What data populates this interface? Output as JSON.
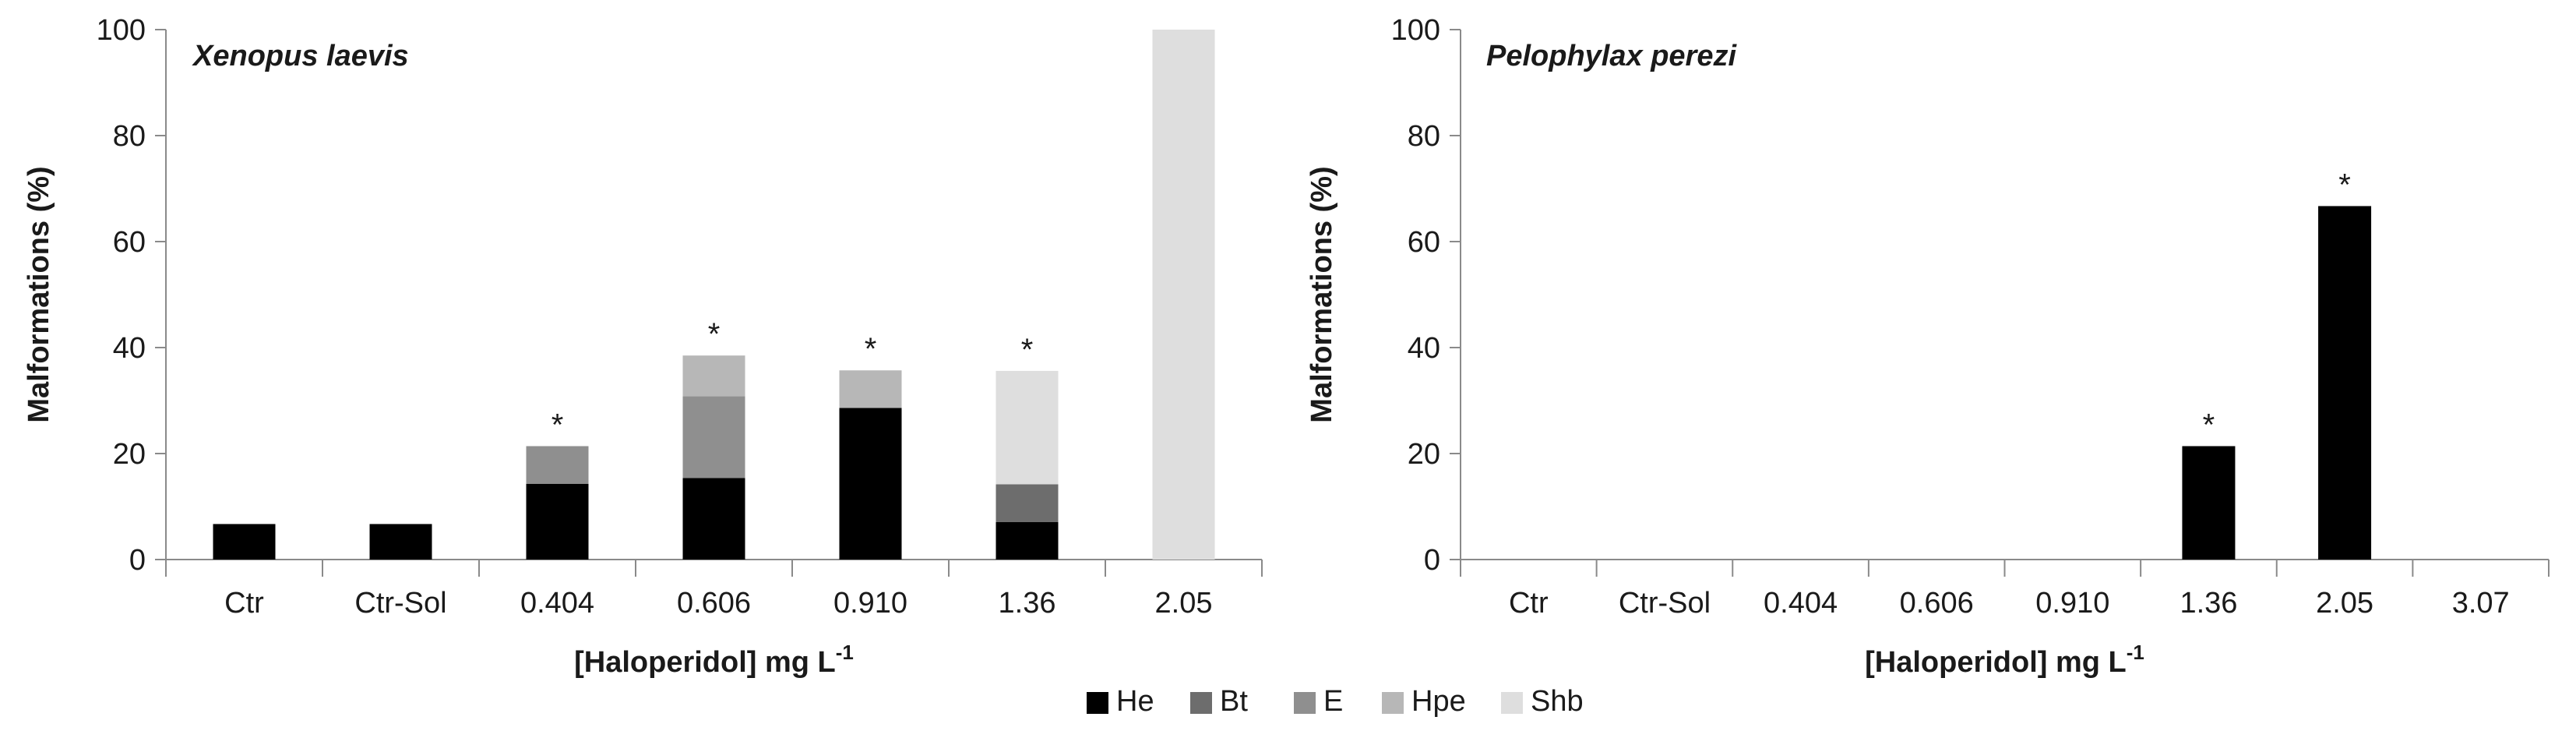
{
  "colors": {
    "He": "#000000",
    "Bt": "#6d6d6d",
    "E": "#8f8f8f",
    "Hpe": "#b7b7b7",
    "Shb": "#dedede",
    "axis": "#8a8a8a"
  },
  "legend": {
    "items": [
      "He",
      "Bt",
      "E",
      "Hpe",
      "Shb"
    ],
    "placement": "bottom-center"
  },
  "chart_data": [
    {
      "type": "bar",
      "stacked": true,
      "title": "Xenopus laevis",
      "xlabel_main": "[Haloperidol]  mg L",
      "xlabel_sup": "-1",
      "ylabel": "Malformations (%)",
      "ylim": [
        0,
        100
      ],
      "yticks": [
        0,
        20,
        40,
        60,
        80,
        100
      ],
      "categories": [
        "Ctr",
        "Ctr-Sol",
        "0.404",
        "0.606",
        "0.910",
        "1.36",
        "2.05"
      ],
      "series": [
        {
          "name": "He",
          "values": [
            6.7,
            6.7,
            14.3,
            15.4,
            28.6,
            7.1,
            0
          ]
        },
        {
          "name": "Bt",
          "values": [
            0,
            0,
            0,
            0,
            0,
            7.1,
            0
          ]
        },
        {
          "name": "E",
          "values": [
            0,
            0,
            7.1,
            15.4,
            0,
            0,
            0
          ]
        },
        {
          "name": "Hpe",
          "values": [
            0,
            0,
            0,
            7.7,
            7.1,
            0,
            0
          ]
        },
        {
          "name": "Shb",
          "values": [
            0,
            0,
            0,
            0,
            0,
            21.4,
            100
          ]
        }
      ],
      "significance": [
        "",
        "",
        "*",
        "*",
        "*",
        "*",
        ""
      ]
    },
    {
      "type": "bar",
      "stacked": true,
      "title": "Pelophylax perezi",
      "xlabel_main": "[Haloperidol]  mg L",
      "xlabel_sup": "-1",
      "ylabel": "Malformations (%)",
      "ylim": [
        0,
        100
      ],
      "yticks": [
        0,
        20,
        40,
        60,
        80,
        100
      ],
      "categories": [
        "Ctr",
        "Ctr-Sol",
        "0.404",
        "0.606",
        "0.910",
        "1.36",
        "2.05",
        "3.07"
      ],
      "series": [
        {
          "name": "He",
          "values": [
            0,
            0,
            0,
            0,
            0,
            21.4,
            66.7,
            0
          ]
        },
        {
          "name": "Bt",
          "values": [
            0,
            0,
            0,
            0,
            0,
            0,
            0,
            0
          ]
        },
        {
          "name": "E",
          "values": [
            0,
            0,
            0,
            0,
            0,
            0,
            0,
            0
          ]
        },
        {
          "name": "Hpe",
          "values": [
            0,
            0,
            0,
            0,
            0,
            0,
            0,
            0
          ]
        },
        {
          "name": "Shb",
          "values": [
            0,
            0,
            0,
            0,
            0,
            0,
            0,
            0
          ]
        }
      ],
      "significance": [
        "",
        "",
        "",
        "",
        "",
        "*",
        "*",
        ""
      ]
    }
  ]
}
